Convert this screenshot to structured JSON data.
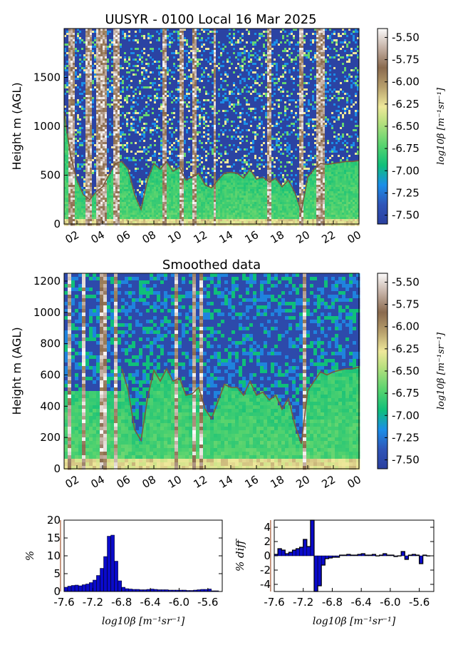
{
  "chart_data": [
    {
      "type": "heatmap",
      "title": "UUSYR - 0100 Local 16 Mar 2025",
      "ylabel": "Height m (AGL)",
      "ylim": [
        0,
        2000
      ],
      "yticks": [
        "0",
        "500",
        "1000",
        "1500"
      ],
      "xticks": [
        "02",
        "04",
        "06",
        "08",
        "10",
        "12",
        "14",
        "16",
        "18",
        "20",
        "22",
        "00"
      ],
      "colorbar": {
        "label": "log10β [m⁻¹sr⁻¹]",
        "range": [
          -7.6,
          -5.4
        ],
        "ticks": [
          "-5.50",
          "-5.75",
          "-6.00",
          "-6.25",
          "-6.50",
          "-6.75",
          "-7.00",
          "-7.25",
          "-7.50"
        ]
      },
      "layer_height_series": {
        "x_hours": [
          1,
          1.5,
          2,
          2.5,
          3,
          3.5,
          4,
          4.5,
          5,
          5.5,
          6,
          6.5,
          7,
          7.5,
          8,
          8.5,
          9,
          9.5,
          10,
          10.5,
          11,
          11.5,
          12,
          12.5,
          13,
          13.5,
          14,
          14.5,
          15,
          15.5,
          16,
          16.5,
          17,
          17.5,
          18,
          18.5,
          19,
          19.5,
          20,
          20.5,
          21,
          21.5,
          22,
          22.5,
          23,
          23.5,
          24
        ],
        "y_m": [
          1150,
          700,
          450,
          300,
          250,
          330,
          380,
          500,
          620,
          640,
          560,
          300,
          150,
          450,
          620,
          560,
          640,
          540,
          580,
          450,
          480,
          520,
          400,
          370,
          450,
          520,
          530,
          520,
          470,
          560,
          460,
          480,
          430,
          470,
          380,
          450,
          320,
          130,
          480,
          560,
          620,
          610,
          620,
          630,
          640,
          640,
          650
        ]
      }
    },
    {
      "type": "heatmap",
      "title": "Smoothed data",
      "ylabel": "Height m (AGL)",
      "ylim": [
        0,
        1250
      ],
      "yticks": [
        "0",
        "200",
        "400",
        "600",
        "800",
        "1000",
        "1200"
      ],
      "xticks": [
        "02",
        "04",
        "06",
        "08",
        "10",
        "12",
        "14",
        "16",
        "18",
        "20",
        "22",
        "00"
      ],
      "colorbar": {
        "label": "log10β [m⁻¹sr⁻¹]",
        "range": [
          -7.6,
          -5.4
        ],
        "ticks": [
          "-5.50",
          "-5.75",
          "-6.00",
          "-6.25",
          "-6.50",
          "-6.75",
          "-7.00",
          "-7.25",
          "-7.50"
        ]
      },
      "layer_height_series": {
        "x_hours": [
          5.5,
          6,
          6.5,
          7,
          7.5,
          8,
          8.5,
          9,
          9.5,
          10,
          10.5,
          11,
          11.5,
          12,
          12.5,
          13,
          13.5,
          14,
          14.5,
          15,
          15.5,
          16,
          16.5,
          17,
          17.5,
          18,
          18.5,
          19,
          19.5,
          20,
          20.5,
          21,
          21.5,
          22,
          22.5,
          23,
          23.5,
          24
        ],
        "y_m": [
          640,
          500,
          250,
          180,
          450,
          630,
          560,
          640,
          560,
          580,
          470,
          480,
          520,
          380,
          320,
          430,
          540,
          520,
          520,
          470,
          560,
          470,
          490,
          440,
          470,
          380,
          450,
          280,
          160,
          500,
          560,
          620,
          600,
          620,
          630,
          640,
          640,
          650
        ]
      }
    },
    {
      "type": "bar",
      "title": "",
      "ylabel": "%",
      "xlabel": "log10β [m⁻¹sr⁻¹]",
      "ylim": [
        0,
        20
      ],
      "xlim": [
        -7.6,
        -5.4
      ],
      "yticks": [
        "0",
        "5",
        "10",
        "15",
        "20"
      ],
      "xticks": [
        "-7.6",
        "-7.2",
        "-6.8",
        "-6.4",
        "-6.0",
        "-5.6"
      ],
      "threshold_line": -7.65,
      "x": [
        -7.6,
        -7.55,
        -7.5,
        -7.45,
        -7.4,
        -7.35,
        -7.3,
        -7.25,
        -7.2,
        -7.15,
        -7.1,
        -7.05,
        -7.0,
        -6.95,
        -6.9,
        -6.85,
        -6.8,
        -6.75,
        -6.7,
        -6.65,
        -6.6,
        -6.55,
        -6.5,
        -6.45,
        -6.4,
        -6.35,
        -6.3,
        -6.25,
        -6.2,
        -6.15,
        -6.1,
        -6.05,
        -6.0,
        -5.95,
        -5.9,
        -5.85,
        -5.8,
        -5.75,
        -5.7,
        -5.65,
        -5.6,
        -5.55,
        -5.5
      ],
      "values": [
        1.2,
        1.5,
        1.7,
        1.8,
        1.6,
        1.9,
        2.1,
        2.5,
        3.2,
        4.5,
        6.5,
        9.8,
        15.5,
        15.8,
        8.5,
        3.0,
        1.2,
        0.8,
        0.7,
        0.6,
        0.6,
        0.5,
        0.5,
        0.6,
        0.7,
        0.6,
        0.5,
        0.5,
        0.5,
        0.4,
        0.4,
        0.4,
        0.4,
        0.4,
        0.3,
        0.3,
        0.4,
        0.5,
        0.6,
        0.6,
        0.7,
        0.2,
        0.2
      ]
    },
    {
      "type": "bar",
      "title": "",
      "ylabel": "% diff",
      "xlabel": "log10β [m⁻¹sr⁻¹]",
      "ylim": [
        -5,
        5
      ],
      "xlim": [
        -7.6,
        -5.4
      ],
      "yticks": [
        "-4",
        "-2",
        "0",
        "2",
        "4"
      ],
      "xticks": [
        "-7.6",
        "-7.2",
        "-6.8",
        "-6.4",
        "-6.0",
        "-5.6"
      ],
      "threshold_line": -7.65,
      "x": [
        -7.6,
        -7.55,
        -7.5,
        -7.45,
        -7.4,
        -7.35,
        -7.3,
        -7.25,
        -7.2,
        -7.15,
        -7.1,
        -7.05,
        -7.0,
        -6.95,
        -6.9,
        -6.85,
        -6.8,
        -6.75,
        -6.7,
        -6.65,
        -6.6,
        -6.55,
        -6.5,
        -6.45,
        -6.4,
        -6.35,
        -6.3,
        -6.25,
        -6.2,
        -6.15,
        -6.1,
        -6.05,
        -6.0,
        -5.95,
        -5.9,
        -5.85,
        -5.8,
        -5.75,
        -5.7,
        -5.65,
        -5.6,
        -5.55,
        -5.5
      ],
      "values": [
        0.2,
        1.0,
        0.8,
        0.3,
        0.5,
        0.8,
        1.0,
        1.2,
        2.3,
        1.3,
        5.0,
        -5.0,
        -4.2,
        -1.3,
        -0.4,
        -0.3,
        -0.2,
        -0.2,
        0.1,
        0.1,
        0.2,
        0.1,
        0.1,
        0.2,
        0.3,
        0.1,
        0.1,
        0.2,
        0.0,
        0.1,
        0.3,
        0.1,
        0.1,
        -0.1,
        0.0,
        0.6,
        -0.5,
        0.1,
        0.2,
        0.1,
        -1.1,
        0.1,
        0.0
      ]
    }
  ]
}
